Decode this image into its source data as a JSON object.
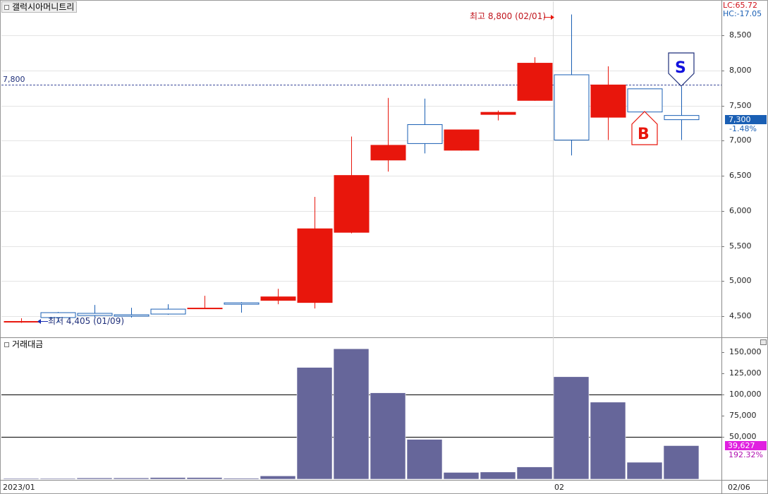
{
  "price_panel": {
    "title": "갤럭시아머니트리",
    "lc_label": "LC:65.72",
    "hc_label": "HC:-17.05",
    "ref_line_label": "7,800",
    "high_marker": "최고 8,800 (02/01)",
    "low_marker": "최저 4,405 (01/09)",
    "current_price": "7,300",
    "current_change": "-1.48%",
    "buy_marker": "B",
    "sell_marker": "S"
  },
  "volume_panel": {
    "title": "거래대금",
    "current_value": "39,627",
    "current_ratio": "192.32%"
  },
  "x_axis": {
    "start_label": "2023/01",
    "month_label": "02",
    "end_label": "02/06"
  },
  "colors": {
    "up": "#e8160c",
    "down": "#1a5fb4",
    "volume": "#66669a",
    "ref_line": "#3b4a9a",
    "marker_text": "#c0141c",
    "price_tag": "#1a5fb4",
    "ratio_tag": "#e020e0",
    "sell": "#1111dd"
  },
  "chart_data": [
    {
      "type": "candlestick",
      "price_ticks": [
        4500,
        5000,
        5500,
        6000,
        6500,
        7000,
        7500,
        8000,
        8500
      ],
      "price_tick_labels": [
        "4,500",
        "5,000",
        "5,500",
        "6,000",
        "6,500",
        "7,000",
        "7,500",
        "8,000",
        "8,500"
      ],
      "ylim": [
        4200,
        8990
      ],
      "reference_line": 7800,
      "candles": [
        {
          "o": 4410,
          "h": 4470,
          "l": 4405,
          "c": 4430
        },
        {
          "o": 4550,
          "h": 4560,
          "l": 4410,
          "c": 4480
        },
        {
          "o": 4540,
          "h": 4660,
          "l": 4480,
          "c": 4510
        },
        {
          "o": 4520,
          "h": 4620,
          "l": 4480,
          "c": 4500
        },
        {
          "o": 4600,
          "h": 4670,
          "l": 4520,
          "c": 4530
        },
        {
          "o": 4600,
          "h": 4790,
          "l": 4600,
          "c": 4620
        },
        {
          "o": 4690,
          "h": 4700,
          "l": 4550,
          "c": 4680
        },
        {
          "o": 4720,
          "h": 4890,
          "l": 4670,
          "c": 4780
        },
        {
          "o": 4690,
          "h": 6200,
          "l": 4610,
          "c": 5750
        },
        {
          "o": 5690,
          "h": 7060,
          "l": 5680,
          "c": 6510
        },
        {
          "o": 6720,
          "h": 7610,
          "l": 6560,
          "c": 6940
        },
        {
          "o": 7230,
          "h": 7600,
          "l": 6820,
          "c": 6960
        },
        {
          "o": 6860,
          "h": 7160,
          "l": 6860,
          "c": 7160
        },
        {
          "o": 7370,
          "h": 7430,
          "l": 7290,
          "c": 7410
        },
        {
          "o": 7570,
          "h": 8190,
          "l": 7570,
          "c": 8110
        },
        {
          "o": 7940,
          "h": 8800,
          "l": 6790,
          "c": 7010
        },
        {
          "o": 7330,
          "h": 8060,
          "l": 7010,
          "c": 7800
        },
        {
          "o": 7740,
          "h": 7740,
          "l": 7410,
          "c": 7410
        },
        {
          "o": 7360,
          "h": 7770,
          "l": 7010,
          "c": 7300
        }
      ]
    },
    {
      "type": "bar",
      "series": [
        {
          "values": [
            1000,
            1000,
            1500,
            1500,
            2000,
            2000,
            1200,
            3900,
            132000,
            154000,
            102000,
            47000,
            8000,
            8500,
            14500,
            121000,
            91000,
            20000,
            39627
          ]
        }
      ],
      "y_ticks": [
        50000,
        75000,
        100000,
        125000,
        150000
      ],
      "y_tick_labels": [
        "50,000",
        "75,000",
        "100,000",
        "125,000",
        "150,000"
      ],
      "ylim": [
        0,
        158000
      ],
      "grid_lines": [
        50000,
        100000
      ]
    }
  ]
}
